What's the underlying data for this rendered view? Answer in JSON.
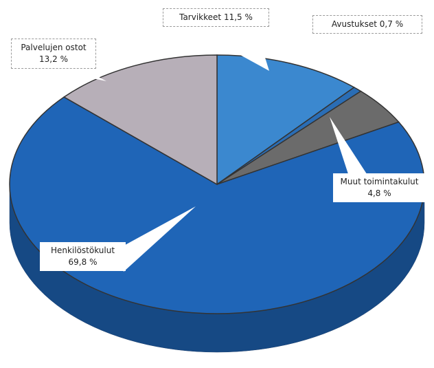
{
  "chart_data": {
    "type": "pie3d",
    "categories": [
      "Tarvikkeet",
      "Avustukset",
      "Muut toimintakulut",
      "Henkilöstökulut",
      "Palvelujen ostot"
    ],
    "values": [
      11.5,
      0.7,
      4.8,
      69.8,
      13.2
    ],
    "value_labels": [
      "11,5 %",
      "0,7 %",
      "4,8 %",
      "69,8 %",
      "13,2 %"
    ],
    "colors": [
      "#3b88cf",
      "#2a6db5",
      "#6b6b6b",
      "#1f65b7",
      "#b7afb8"
    ]
  }
}
